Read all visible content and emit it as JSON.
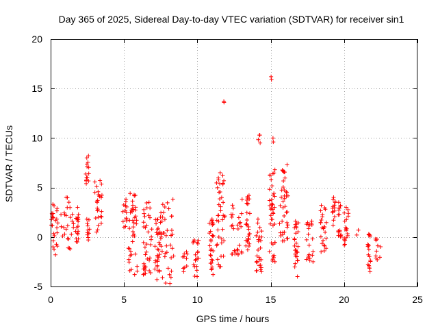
{
  "chart_data": {
    "type": "scatter",
    "title": "Day 365 of 2025, Sidereal Day-to-day VTEC variation (SDTVAR) for receiver sin1",
    "xlabel": "GPS time / hours",
    "ylabel": "SDTVAR / TECUs",
    "xlim": [
      0,
      25
    ],
    "ylim": [
      -5,
      20
    ],
    "x_ticks": [
      "0",
      "5",
      "10",
      "15",
      "20",
      "25"
    ],
    "y_ticks": [
      "-5",
      "0",
      "5",
      "10",
      "15",
      "20"
    ],
    "grid": true,
    "marker": "+",
    "color": "#ff0000",
    "series": [
      {
        "name": "SDTVAR",
        "clusters": [
          {
            "x_start": 0.0,
            "x_end": 0.5,
            "y_min": -1.8,
            "y_max": 3.3
          },
          {
            "x_start": 0.7,
            "x_end": 1.6,
            "y_min": -1.2,
            "y_max": 4.0
          },
          {
            "x_start": 1.7,
            "x_end": 1.9,
            "y_min": -0.5,
            "y_max": 3.0
          },
          {
            "x_start": 2.4,
            "x_end": 2.7,
            "y_min": -0.3,
            "y_max": 1.8
          },
          {
            "x_start": 2.4,
            "x_end": 2.6,
            "y_min": 5.4,
            "y_max": 8.2
          },
          {
            "x_start": 3.0,
            "x_end": 3.5,
            "y_min": 0.5,
            "y_max": 5.7
          },
          {
            "x_start": 4.9,
            "x_end": 5.2,
            "y_min": 1.0,
            "y_max": 3.8
          },
          {
            "x_start": 5.3,
            "x_end": 5.9,
            "y_min": -3.8,
            "y_max": 4.4
          },
          {
            "x_start": 6.3,
            "x_end": 6.9,
            "y_min": -3.8,
            "y_max": 3.5
          },
          {
            "x_start": 7.1,
            "x_end": 7.5,
            "y_min": -4.3,
            "y_max": 2.0
          },
          {
            "x_start": 7.5,
            "x_end": 8.4,
            "y_min": -4.7,
            "y_max": 3.8
          },
          {
            "x_start": 9.0,
            "x_end": 9.3,
            "y_min": -3.5,
            "y_max": -1.5
          },
          {
            "x_start": 9.7,
            "x_end": 10.1,
            "y_min": -4.0,
            "y_max": -0.3
          },
          {
            "x_start": 10.8,
            "x_end": 11.1,
            "y_min": -3.8,
            "y_max": 1.8
          },
          {
            "x_start": 11.3,
            "x_end": 11.9,
            "y_min": -3.0,
            "y_max": 6.5
          },
          {
            "x_start": 11.8,
            "x_end": 11.8,
            "y_min": 13.6,
            "y_max": 13.7
          },
          {
            "x_start": 12.3,
            "x_end": 13.1,
            "y_min": -1.8,
            "y_max": 3.8
          },
          {
            "x_start": 13.3,
            "x_end": 13.6,
            "y_min": -1.3,
            "y_max": 4.2
          },
          {
            "x_start": 14.0,
            "x_end": 14.4,
            "y_min": -3.5,
            "y_max": 1.8
          },
          {
            "x_start": 14.1,
            "x_end": 14.3,
            "y_min": 9.5,
            "y_max": 10.3
          },
          {
            "x_start": 14.9,
            "x_end": 15.3,
            "y_min": -2.5,
            "y_max": 6.8
          },
          {
            "x_start": 14.9,
            "x_end": 15.2,
            "y_min": 9.6,
            "y_max": 10.0
          },
          {
            "x_start": 15.0,
            "x_end": 15.1,
            "y_min": 15.9,
            "y_max": 16.2
          },
          {
            "x_start": 15.6,
            "x_end": 16.2,
            "y_min": -0.4,
            "y_max": 7.3
          },
          {
            "x_start": 16.6,
            "x_end": 16.9,
            "y_min": -4.0,
            "y_max": 1.6
          },
          {
            "x_start": 17.4,
            "x_end": 17.9,
            "y_min": -2.5,
            "y_max": 1.6
          },
          {
            "x_start": 18.4,
            "x_end": 18.8,
            "y_min": -1.5,
            "y_max": 3.2
          },
          {
            "x_start": 19.2,
            "x_end": 19.4,
            "y_min": 1.2,
            "y_max": 4.0
          },
          {
            "x_start": 19.6,
            "x_end": 19.8,
            "y_min": 0.0,
            "y_max": 3.5
          },
          {
            "x_start": 20.0,
            "x_end": 20.3,
            "y_min": -0.8,
            "y_max": 3.0
          },
          {
            "x_start": 20.7,
            "x_end": 21.0,
            "y_min": 0.2,
            "y_max": 0.7
          },
          {
            "x_start": 21.6,
            "x_end": 21.8,
            "y_min": -3.5,
            "y_max": 0.3
          },
          {
            "x_start": 22.1,
            "x_end": 22.5,
            "y_min": -2.3,
            "y_max": -0.2
          }
        ]
      }
    ]
  }
}
